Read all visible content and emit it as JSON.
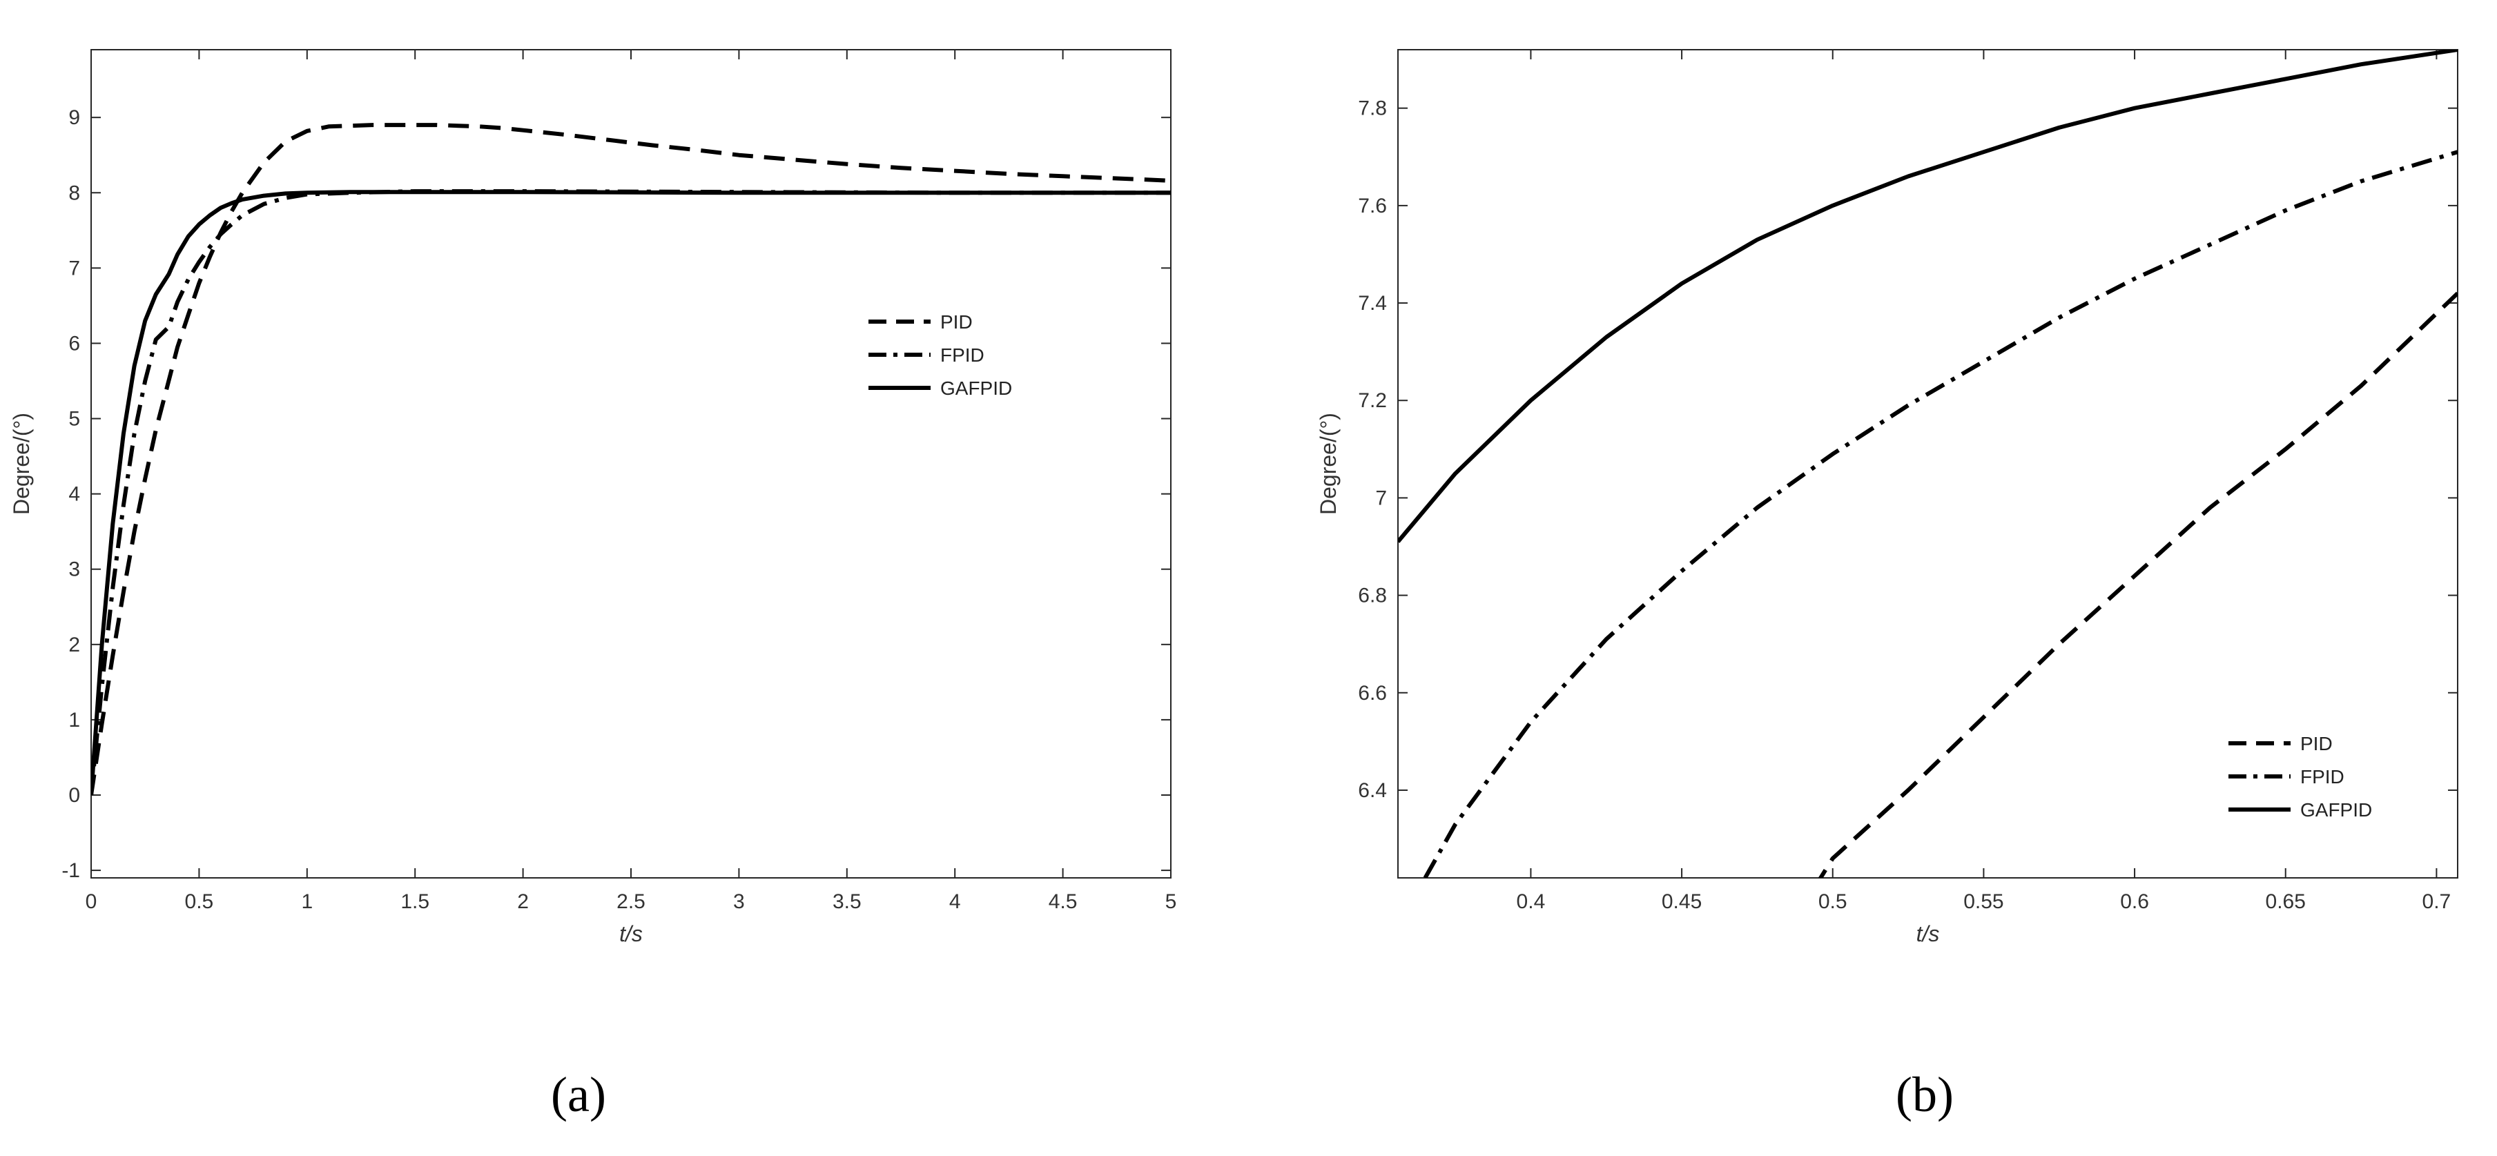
{
  "chart_data": [
    {
      "panel_label": "(a)",
      "type": "line",
      "title": "",
      "xlabel": "t/s",
      "ylabel": "Degree/(°)",
      "xlim": [
        0,
        5
      ],
      "ylim": [
        -1.1,
        9.9
      ],
      "xticks": [
        0,
        0.5,
        1,
        1.5,
        2,
        2.5,
        3,
        3.5,
        4,
        4.5,
        5
      ],
      "yticks": [
        -1,
        0,
        1,
        2,
        3,
        4,
        5,
        6,
        7,
        8,
        9
      ],
      "grid": false,
      "legend": "center-right",
      "series": [
        {
          "name": "PID",
          "style": "dashed",
          "x": [
            0,
            0.05,
            0.1,
            0.15,
            0.2,
            0.25,
            0.3,
            0.35,
            0.4,
            0.45,
            0.5,
            0.55,
            0.6,
            0.65,
            0.7,
            0.8,
            0.9,
            1.0,
            1.1,
            1.2,
            1.3,
            1.4,
            1.5,
            1.6,
            1.7,
            1.8,
            1.9,
            2.0,
            2.2,
            2.4,
            2.6,
            2.8,
            3.0,
            3.25,
            3.5,
            3.75,
            4.0,
            4.25,
            4.5,
            4.75,
            5.0
          ],
          "y": [
            0,
            0.95,
            1.85,
            2.7,
            3.5,
            4.2,
            4.85,
            5.4,
            5.95,
            6.38,
            6.8,
            7.15,
            7.47,
            7.75,
            8.0,
            8.4,
            8.68,
            8.82,
            8.88,
            8.89,
            8.9,
            8.9,
            8.9,
            8.9,
            8.89,
            8.88,
            8.86,
            8.83,
            8.77,
            8.7,
            8.63,
            8.57,
            8.5,
            8.44,
            8.38,
            8.33,
            8.29,
            8.25,
            8.22,
            8.19,
            8.16
          ]
        },
        {
          "name": "FPID",
          "style": "dashdot",
          "x": [
            0,
            0.05,
            0.1,
            0.15,
            0.2,
            0.25,
            0.3,
            0.36,
            0.4,
            0.45,
            0.5,
            0.55,
            0.6,
            0.65,
            0.7,
            0.8,
            0.9,
            1.0,
            1.2,
            1.5,
            2.0,
            3.0,
            4.0,
            5.0
          ],
          "y": [
            0,
            1.45,
            2.75,
            3.85,
            4.8,
            5.5,
            6.05,
            6.22,
            6.55,
            6.85,
            7.08,
            7.28,
            7.45,
            7.58,
            7.7,
            7.85,
            7.93,
            7.98,
            8.0,
            8.02,
            8.02,
            8.01,
            8.0,
            8.0
          ]
        },
        {
          "name": "GAFPID",
          "style": "solid",
          "x": [
            0,
            0.05,
            0.1,
            0.15,
            0.2,
            0.25,
            0.3,
            0.36,
            0.4,
            0.45,
            0.5,
            0.55,
            0.6,
            0.65,
            0.7,
            0.8,
            0.9,
            1.0,
            1.2,
            1.5,
            2.0,
            3.0,
            4.0,
            5.0
          ],
          "y": [
            0,
            2.0,
            3.6,
            4.8,
            5.7,
            6.3,
            6.65,
            6.92,
            7.18,
            7.42,
            7.58,
            7.7,
            7.8,
            7.86,
            7.91,
            7.96,
            7.99,
            8.0,
            8.01,
            8.01,
            8.01,
            8.0,
            8.0,
            8.0
          ]
        }
      ]
    },
    {
      "panel_label": "(b)",
      "type": "line",
      "title": "",
      "xlabel": "t/s",
      "ylabel": "Degree/(°)",
      "xlim": [
        0.356,
        0.707
      ],
      "ylim": [
        6.22,
        7.92
      ],
      "xticks": [
        0.4,
        0.45,
        0.5,
        0.55,
        0.6,
        0.65,
        0.7
      ],
      "yticks": [
        6.4,
        6.6,
        6.8,
        7,
        7.2,
        7.4,
        7.6,
        7.8
      ],
      "grid": false,
      "legend": "bottom-right",
      "series": [
        {
          "name": "PID",
          "style": "dashed",
          "x": [
            0.494,
            0.5,
            0.525,
            0.55,
            0.575,
            0.6,
            0.625,
            0.65,
            0.675,
            0.707
          ],
          "y": [
            6.2,
            6.26,
            6.4,
            6.55,
            6.7,
            6.84,
            6.98,
            7.1,
            7.23,
            7.42
          ]
        },
        {
          "name": "FPID",
          "style": "dashdot",
          "x": [
            0.365,
            0.375,
            0.4,
            0.425,
            0.45,
            0.475,
            0.5,
            0.525,
            0.55,
            0.575,
            0.6,
            0.625,
            0.65,
            0.675,
            0.707
          ],
          "y": [
            6.22,
            6.33,
            6.54,
            6.71,
            6.85,
            6.98,
            7.09,
            7.19,
            7.28,
            7.37,
            7.45,
            7.52,
            7.59,
            7.65,
            7.71
          ]
        },
        {
          "name": "GAFPID",
          "style": "solid",
          "x": [
            0.356,
            0.375,
            0.4,
            0.425,
            0.45,
            0.475,
            0.5,
            0.525,
            0.55,
            0.575,
            0.6,
            0.625,
            0.65,
            0.675,
            0.707
          ],
          "y": [
            6.91,
            7.05,
            7.2,
            7.33,
            7.44,
            7.53,
            7.6,
            7.66,
            7.71,
            7.76,
            7.8,
            7.83,
            7.86,
            7.89,
            7.92
          ]
        }
      ]
    }
  ]
}
